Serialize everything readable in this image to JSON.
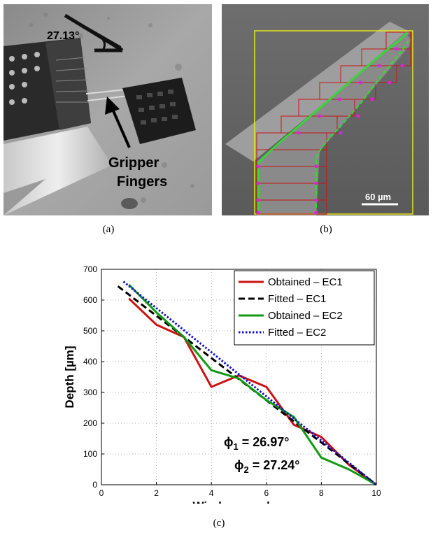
{
  "figure": {
    "panel_a": {
      "caption": "(a)",
      "angle_label": "27.13°",
      "annotation_line1": "Gripper",
      "annotation_line2": "Fingers"
    },
    "panel_b": {
      "caption": "(b)",
      "scale_bar_label": "60 µm"
    },
    "panel_c": {
      "caption": "(c)",
      "phi1_label": "ϕ",
      "phi1_sub": "1",
      "phi1_value": " = 26.97°",
      "phi2_label": "ϕ",
      "phi2_sub": "2",
      "phi2_value": " = 27.24°"
    }
  },
  "chart_data": {
    "type": "line",
    "xlabel": "Window number",
    "ylabel": "Depth [µm]",
    "xlim": [
      0,
      10
    ],
    "ylim": [
      0,
      700
    ],
    "xticks": [
      0,
      2,
      4,
      6,
      8,
      10
    ],
    "yticks": [
      0,
      100,
      200,
      300,
      400,
      500,
      600,
      700
    ],
    "grid": true,
    "legend_position": "top-right",
    "series": [
      {
        "name": "Obtained – EC1",
        "color": "#cc1111",
        "style": "solid",
        "x": [
          1,
          2,
          3,
          4,
          5,
          6,
          7,
          8,
          9,
          10
        ],
        "y": [
          605,
          520,
          480,
          318,
          355,
          318,
          195,
          155,
          65,
          0
        ]
      },
      {
        "name": "Fitted – EC1",
        "color": "#000000",
        "style": "dashed",
        "x": [
          0.6,
          10
        ],
        "y": [
          645,
          0
        ]
      },
      {
        "name": "Obtained – EC2",
        "color": "#119911",
        "style": "solid",
        "x": [
          1,
          2,
          3,
          4,
          5,
          6,
          7,
          8,
          9,
          10
        ],
        "y": [
          650,
          560,
          480,
          372,
          345,
          275,
          220,
          88,
          50,
          0
        ]
      },
      {
        "name": "Fitted – EC2",
        "color": "#1111cc",
        "style": "dotted",
        "x": [
          0.8,
          10
        ],
        "y": [
          660,
          0
        ]
      }
    ]
  }
}
